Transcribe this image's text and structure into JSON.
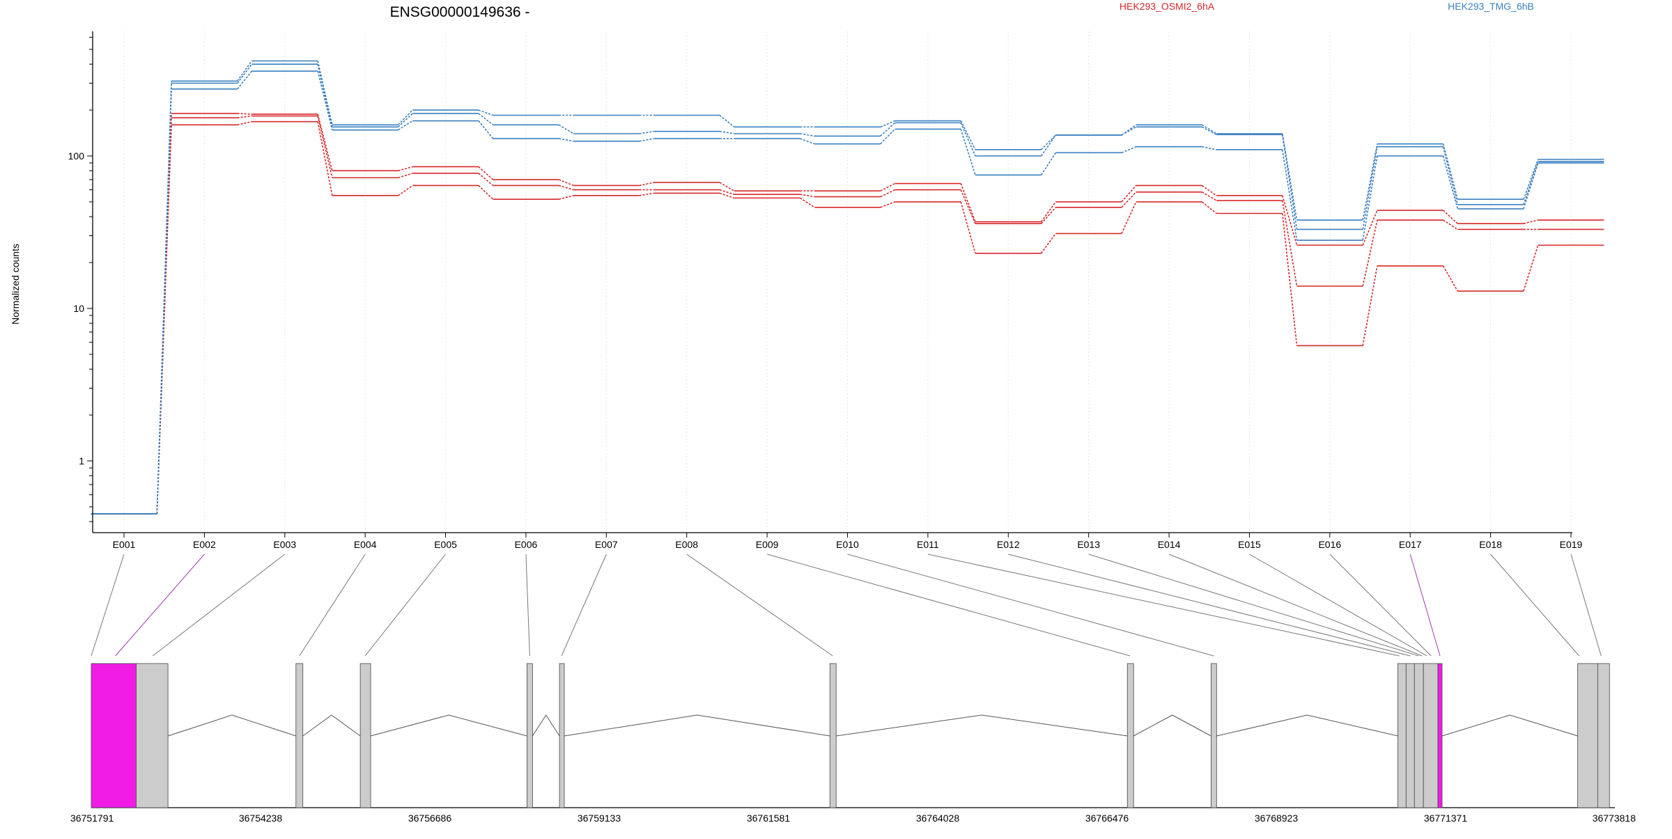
{
  "chart_data": {
    "type": "line",
    "title": "ENSG00000149636 -",
    "ylabel": "Normalized counts",
    "y_scale": "log",
    "ylim": [
      0.4,
      600
    ],
    "y_ticks": [
      "1",
      "10",
      "100"
    ],
    "grid": "vertical dotted",
    "legend": "top-right",
    "categories": [
      "E001",
      "E002",
      "E003",
      "E004",
      "E005",
      "E006",
      "E007",
      "E008",
      "E009",
      "E010",
      "E011",
      "E012",
      "E013",
      "E014",
      "E015",
      "E016",
      "E017",
      "E018",
      "E019"
    ],
    "series": [
      {
        "name": "HEK293_OSMI2_6hA",
        "color": "#d62728",
        "values": [
          [
            0.45,
            0.45,
            0.45
          ],
          [
            190,
            178,
            160
          ],
          [
            188,
            183,
            168
          ],
          [
            80,
            72,
            55
          ],
          [
            85,
            77,
            64
          ],
          [
            70,
            64,
            52
          ],
          [
            64,
            60,
            55
          ],
          [
            67,
            60,
            57
          ],
          [
            59,
            56,
            53
          ],
          [
            59,
            54,
            46
          ],
          [
            66,
            60,
            50
          ],
          [
            37,
            36,
            23
          ],
          [
            50,
            46,
            31
          ],
          [
            64,
            58,
            50
          ],
          [
            55,
            51,
            42
          ],
          [
            26,
            14,
            5.7
          ],
          [
            44,
            38,
            19
          ],
          [
            36,
            33,
            13
          ],
          [
            38,
            33,
            26
          ]
        ]
      },
      {
        "name": "HEK293_TMG_6hB",
        "color": "#3a7fc0",
        "values": [
          [
            0.45,
            0.45,
            0.45
          ],
          [
            310,
            300,
            275
          ],
          [
            420,
            400,
            360
          ],
          [
            160,
            155,
            148
          ],
          [
            200,
            190,
            170
          ],
          [
            185,
            160,
            130
          ],
          [
            185,
            140,
            125
          ],
          [
            185,
            145,
            130
          ],
          [
            155,
            140,
            130
          ],
          [
            155,
            135,
            120
          ],
          [
            170,
            165,
            150
          ],
          [
            110,
            100,
            75
          ],
          [
            137,
            137,
            105
          ],
          [
            160,
            155,
            115
          ],
          [
            140,
            138,
            110
          ],
          [
            38,
            33,
            28
          ],
          [
            120,
            115,
            100
          ],
          [
            52,
            48,
            45
          ],
          [
            95,
            92,
            90
          ]
        ]
      }
    ],
    "gene_track": {
      "coordinate_labels": [
        "36751791",
        "36754238",
        "36756686",
        "36759133",
        "36761581",
        "36764028",
        "36766476",
        "36768923",
        "36771371",
        "36773818"
      ],
      "coord_range": [
        36751791,
        36773818
      ],
      "highlight_color": "#f01ce6",
      "exon_color": "#cccccc",
      "exons": [
        {
          "start": 36751791,
          "end": 36752440,
          "highlight": true
        },
        {
          "start": 36752440,
          "end": 36752900,
          "highlight": false
        },
        {
          "start": 36754750,
          "end": 36754850,
          "highlight": false
        },
        {
          "start": 36755680,
          "end": 36755830,
          "highlight": false
        },
        {
          "start": 36758090,
          "end": 36758170,
          "highlight": false
        },
        {
          "start": 36758560,
          "end": 36758630,
          "highlight": false
        },
        {
          "start": 36762470,
          "end": 36762560,
          "highlight": false
        },
        {
          "start": 36766770,
          "end": 36766860,
          "highlight": false
        },
        {
          "start": 36767980,
          "end": 36768060,
          "highlight": false
        },
        {
          "start": 36770680,
          "end": 36770800,
          "highlight": false
        },
        {
          "start": 36770800,
          "end": 36770920,
          "highlight": false
        },
        {
          "start": 36770920,
          "end": 36771050,
          "highlight": false
        },
        {
          "start": 36771050,
          "end": 36771260,
          "highlight": false
        },
        {
          "start": 36771260,
          "end": 36771320,
          "highlight": true
        },
        {
          "start": 36773280,
          "end": 36773570,
          "highlight": false
        },
        {
          "start": 36773570,
          "end": 36773740,
          "highlight": false
        }
      ],
      "feature_positions": [
        36751791,
        36752140,
        36752680,
        36754800,
        36755750,
        36758130,
        36758590,
        36762510,
        36766810,
        36768020,
        36770700,
        36770860,
        36770980,
        36771030,
        36771100,
        36771160,
        36771290,
        36773300,
        36773620
      ]
    }
  }
}
